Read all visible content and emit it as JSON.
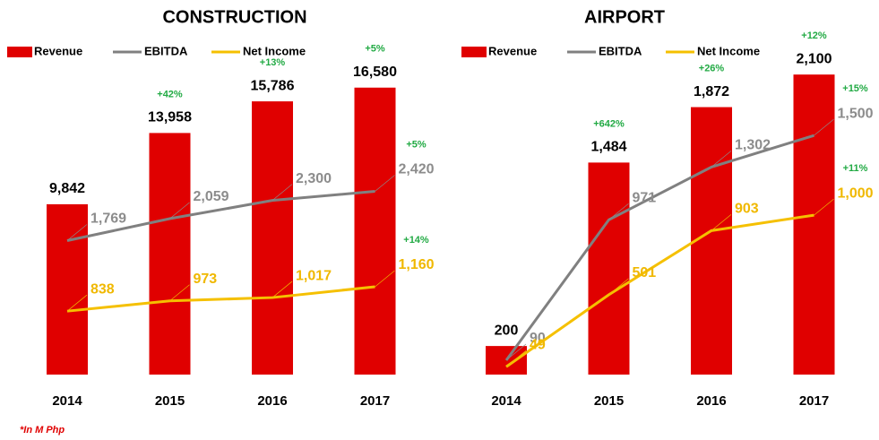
{
  "chart_data": [
    {
      "type": "combo",
      "title": "CONSTRUCTION",
      "categories": [
        "2014",
        "2015",
        "2016",
        "2017"
      ],
      "ylim": [
        0,
        17500
      ],
      "y2lim": [
        0,
        4000
      ],
      "series": [
        {
          "name": "Revenue",
          "type": "bar",
          "color": "#e00000",
          "values": [
            9842,
            13958,
            15786,
            16580
          ],
          "value_labels": [
            "9,842",
            "13,958",
            "15,786",
            "16,580"
          ],
          "growth_labels": [
            null,
            "+42%",
            "+13%",
            "+5%"
          ]
        },
        {
          "name": "EBITDA",
          "type": "line",
          "axis": "y2",
          "color": "#808080",
          "values": [
            1769,
            2059,
            2300,
            2420
          ],
          "value_labels": [
            "1,769",
            "2,059",
            "2,300",
            "2,420"
          ],
          "growth_labels": [
            null,
            null,
            null,
            "+5%"
          ]
        },
        {
          "name": "Net Income",
          "type": "line",
          "axis": "y2",
          "color": "#f5c000",
          "values": [
            838,
            973,
            1017,
            1160
          ],
          "value_labels": [
            "838",
            "973",
            "1,017",
            "1,160"
          ],
          "growth_labels": [
            null,
            null,
            null,
            "+14%"
          ]
        }
      ]
    },
    {
      "type": "combo",
      "title": "AIRPORT",
      "categories": [
        "2014",
        "2015",
        "2016",
        "2017"
      ],
      "ylim": [
        0,
        2120
      ],
      "y2lim": [
        0,
        1900
      ],
      "series": [
        {
          "name": "Revenue",
          "type": "bar",
          "color": "#e00000",
          "values": [
            200,
            1484,
            1872,
            2100
          ],
          "value_labels": [
            "200",
            "1,484",
            "1,872",
            "2,100"
          ],
          "growth_labels": [
            null,
            "+642%",
            "+26%",
            "+12%"
          ]
        },
        {
          "name": "EBITDA",
          "type": "line",
          "axis": "y2",
          "color": "#808080",
          "values": [
            90,
            971,
            1302,
            1500
          ],
          "value_labels": [
            "90",
            "971",
            "1,302",
            "1,500"
          ],
          "growth_labels": [
            null,
            null,
            null,
            "+15%"
          ]
        },
        {
          "name": "Net Income",
          "type": "line",
          "axis": "y2",
          "color": "#f5c000",
          "values": [
            49,
            501,
            903,
            1000
          ],
          "value_labels": [
            "49",
            "501",
            "903",
            "1,000"
          ],
          "growth_labels": [
            null,
            null,
            null,
            "+11%"
          ]
        }
      ]
    }
  ],
  "footnote": "*In M Php"
}
